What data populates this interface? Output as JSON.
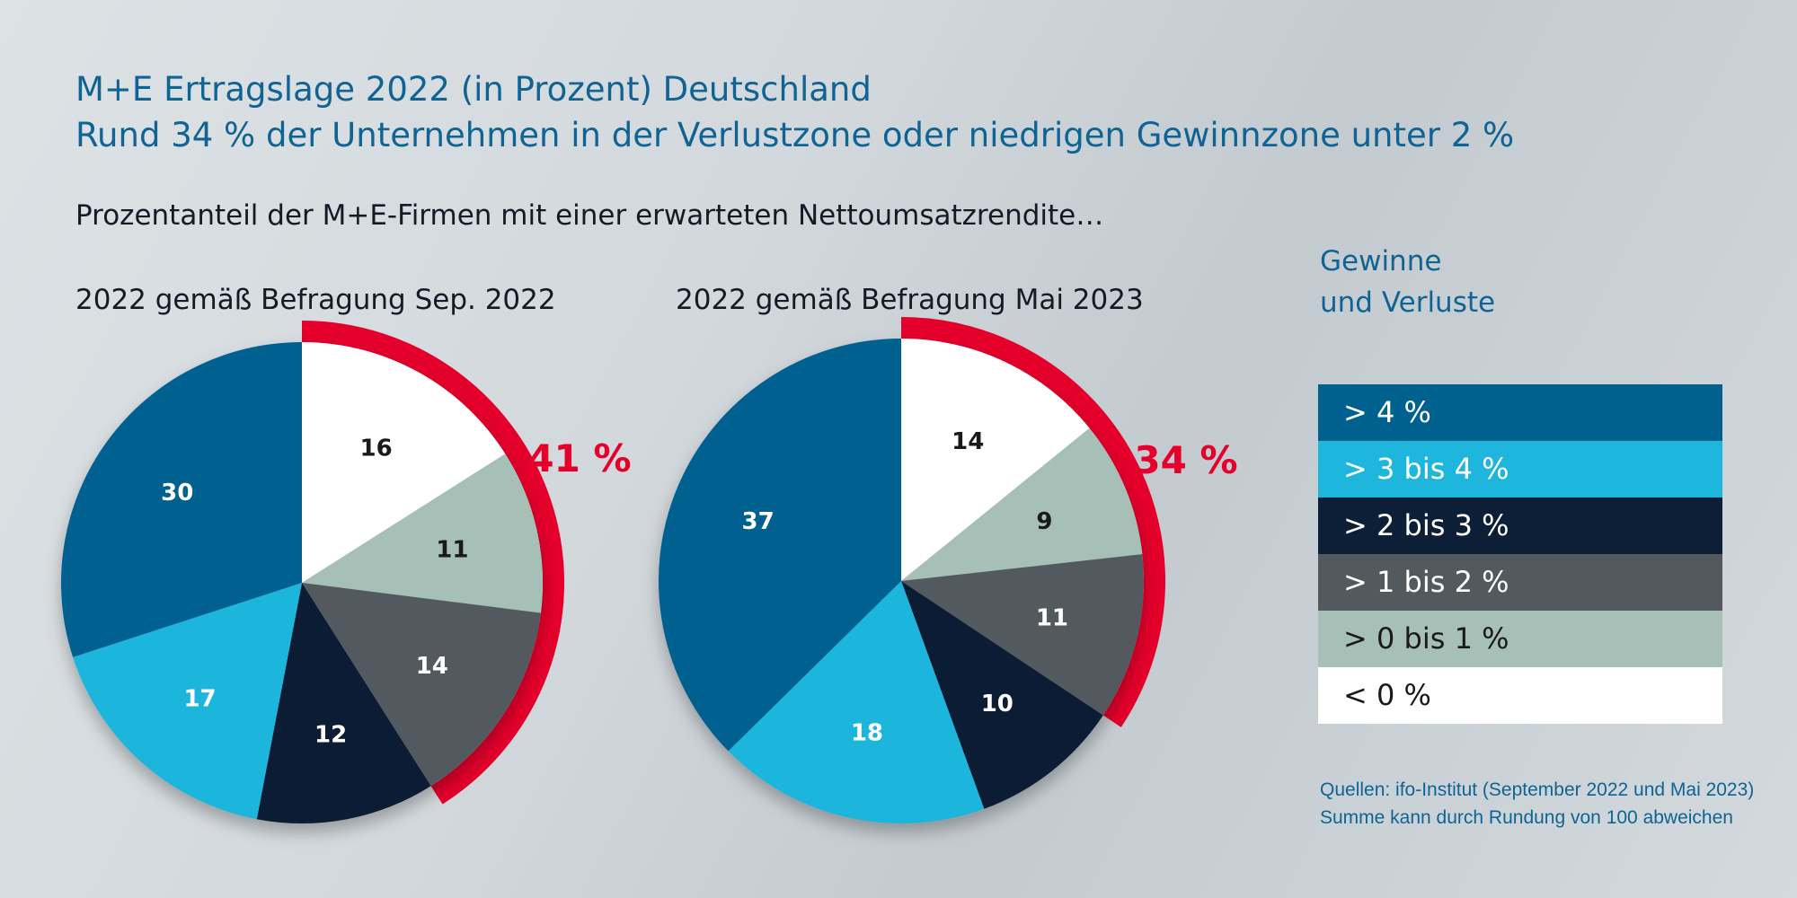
{
  "header": {
    "title_line1": "M+E Ertragslage 2022 (in Prozent) Deutschland",
    "title_line2": "Rund 34 % der Unternehmen in der Verlustzone oder niedrigen Gewinnzone unter 2 %",
    "subtitle": "Prozentanteil der M+E-Firmen mit einer erwarteten Nettoumsatzrendite…"
  },
  "legend": {
    "title_line1": "Gewinne",
    "title_line2": "und Verluste",
    "items": [
      {
        "label": "> 4 %",
        "color": "#00618f",
        "text_color": "#ffffff"
      },
      {
        "label": "> 3 bis 4 %",
        "color": "#1fb6dd",
        "text_color": "#ffffff"
      },
      {
        "label": "> 2 bis 3 %",
        "color": "#0d1f36",
        "text_color": "#ffffff"
      },
      {
        "label": "> 1 bis 2 %",
        "color": "#525a5e",
        "text_color": "#ffffff"
      },
      {
        "label": "> 0 bis 1 %",
        "color": "#a6c0b7",
        "text_color": "#1a1a1a"
      },
      {
        "label": "< 0 %",
        "color": "#ffffff",
        "text_color": "#1a1a1a"
      }
    ]
  },
  "chart_data": [
    {
      "type": "pie",
      "title": "2022 gemäß Befragung Sep. 2022",
      "categories": [
        "< 0 %",
        "> 0 bis 1 %",
        "> 1 bis 2 %",
        "> 2 bis 3 %",
        "> 3 bis 4 %",
        "> 4 %"
      ],
      "values": [
        16,
        11,
        14,
        12,
        17,
        30
      ],
      "value_labels": [
        "16",
        "11",
        "14",
        "12",
        "17",
        "30"
      ],
      "highlight": {
        "label": "41 %",
        "categories": [
          "< 0 %",
          "> 0 bis 1 %",
          "> 1 bis 2 %"
        ],
        "color": "#e4002b"
      }
    },
    {
      "type": "pie",
      "title": "2022 gemäß Befragung Mai 2023",
      "categories": [
        "< 0 %",
        "> 0 bis 1 %",
        "> 1 bis 2 %",
        "> 2 bis 3 %",
        "> 3 bis 4 %",
        "> 4 %"
      ],
      "values": [
        14,
        9,
        11,
        10,
        18,
        37
      ],
      "value_labels": [
        "14",
        "9",
        "11",
        "10",
        "18",
        "37"
      ],
      "highlight": {
        "label": "34 %",
        "categories": [
          "< 0 %",
          "> 0 bis 1 %",
          "> 1 bis 2 %"
        ],
        "color": "#e4002b"
      }
    }
  ],
  "sources": {
    "line1": "Quellen: ifo-Institut (September 2022 und Mai 2023)",
    "line2": "Summe kann durch Rundung von 100 abweichen"
  }
}
